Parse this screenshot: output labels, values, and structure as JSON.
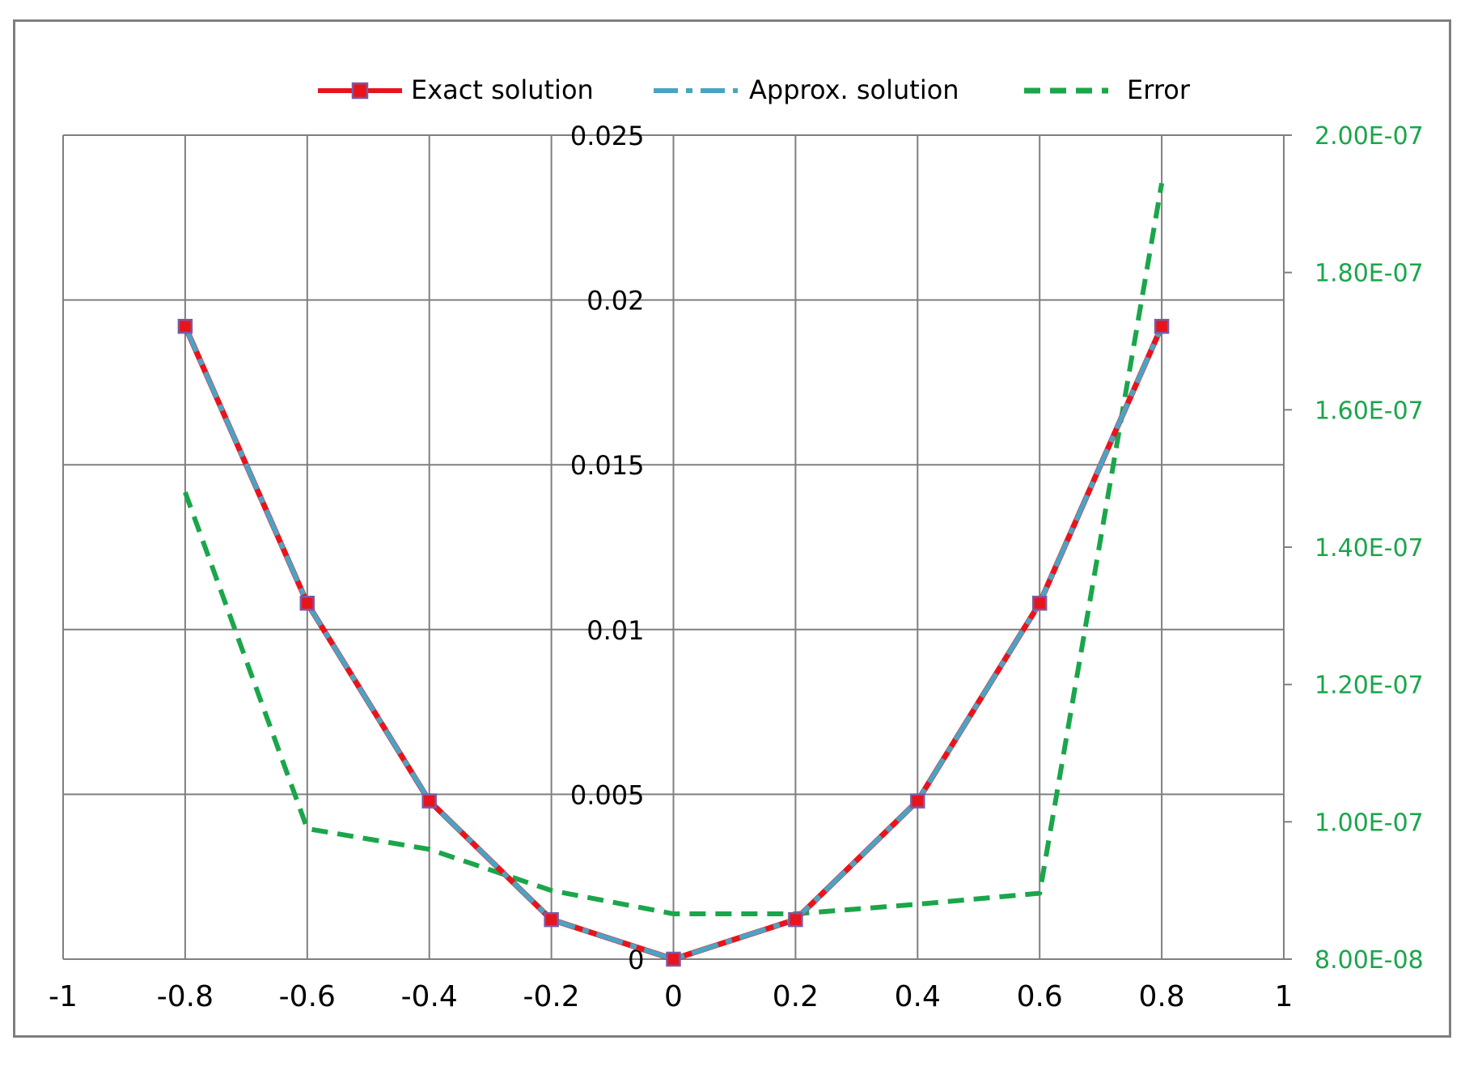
{
  "colors": {
    "exact": "#e8141c",
    "approx": "#4ba3c3",
    "error": "#1aa64a",
    "marker_fill": "#e8141c",
    "marker_edge": "#7b5aa6",
    "grid": "#7f7f7f",
    "right_axis_text": "#1aa64a"
  },
  "legend": {
    "placement": "top-center",
    "items": [
      {
        "label": "Exact solution",
        "series": "exact"
      },
      {
        "label": "Approx. solution",
        "series": "approx"
      },
      {
        "label": "Error",
        "series": "error"
      }
    ]
  },
  "chart_data": {
    "type": "line",
    "grid": true,
    "x": [
      -0.8,
      -0.6,
      -0.4,
      -0.2,
      0,
      0.2,
      0.4,
      0.6,
      0.8
    ],
    "xlim": [
      -1,
      1
    ],
    "ylim": [
      0,
      0.025
    ],
    "y2lim": [
      8e-08,
      2e-07
    ],
    "x_ticks": [
      {
        "value": -1,
        "label": "-1"
      },
      {
        "value": -0.8,
        "label": "-0.8"
      },
      {
        "value": -0.6,
        "label": "-0.6"
      },
      {
        "value": -0.4,
        "label": "-0.4"
      },
      {
        "value": -0.2,
        "label": "-0.2"
      },
      {
        "value": 0,
        "label": "0"
      },
      {
        "value": 0.2,
        "label": "0.2"
      },
      {
        "value": 0.4,
        "label": "0.4"
      },
      {
        "value": 0.6,
        "label": "0.6"
      },
      {
        "value": 0.8,
        "label": "0.8"
      },
      {
        "value": 1,
        "label": "1"
      }
    ],
    "y_ticks": [
      {
        "value": 0,
        "label": "0"
      },
      {
        "value": 0.005,
        "label": "0.005"
      },
      {
        "value": 0.01,
        "label": "0.01"
      },
      {
        "value": 0.015,
        "label": "0.015"
      },
      {
        "value": 0.02,
        "label": "0.02"
      },
      {
        "value": 0.025,
        "label": "0.025"
      }
    ],
    "y2_ticks": [
      {
        "value": 8e-08,
        "label": "8.00E-08"
      },
      {
        "value": 1e-07,
        "label": "1.00E-07"
      },
      {
        "value": 1.2e-07,
        "label": "1.20E-07"
      },
      {
        "value": 1.4e-07,
        "label": "1.40E-07"
      },
      {
        "value": 1.6e-07,
        "label": "1.60E-07"
      },
      {
        "value": 1.8e-07,
        "label": "1.80E-07"
      },
      {
        "value": 2e-07,
        "label": "2.00E-07"
      }
    ],
    "series": [
      {
        "name": "Exact solution",
        "key": "exact",
        "axis": "left",
        "values": [
          0.0192,
          0.0108,
          0.0048,
          0.0012,
          0.0,
          0.0012,
          0.0048,
          0.0108,
          0.0192
        ]
      },
      {
        "name": "Approx. solution",
        "key": "approx",
        "axis": "left",
        "values": [
          0.0192,
          0.0108,
          0.0048,
          0.0012,
          0.0,
          0.0012,
          0.0048,
          0.0108,
          0.0192
        ]
      },
      {
        "name": "Error",
        "key": "error",
        "axis": "right",
        "values": [
          1.48e-07,
          9.9e-08,
          9.6e-08,
          9e-08,
          8.66e-08,
          8.66e-08,
          8.8e-08,
          8.96e-08,
          1.93e-07
        ]
      }
    ]
  }
}
